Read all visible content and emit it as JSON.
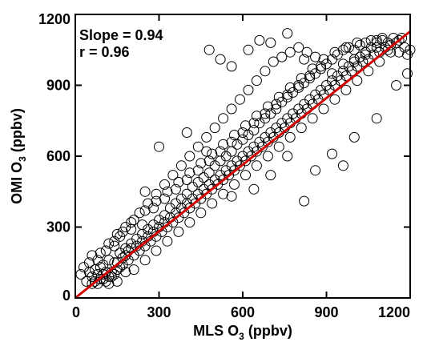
{
  "chart_data": {
    "type": "scatter",
    "title": "",
    "xlabel": "MLS O",
    "xlabel_sub": "3",
    "xlabel_unit": " (ppbv)",
    "ylabel": "OMI O",
    "ylabel_sub": "3",
    "ylabel_unit": " (ppbv)",
    "xlim": [
      0,
      1200
    ],
    "ylim": [
      0,
      1200
    ],
    "xticks": [
      0,
      300,
      600,
      900,
      1200
    ],
    "yticks": [
      0,
      300,
      600,
      900,
      1200
    ],
    "xtick_labels": [
      "0",
      "300",
      "600",
      "900",
      "1200"
    ],
    "ytick_labels": [
      "0",
      "300",
      "600",
      "900",
      "1200"
    ],
    "grid": false,
    "marker": "open-circle",
    "marker_color": "#000000",
    "fit_line": {
      "slope": 0.94,
      "intercept": 0,
      "color": "#d40000"
    },
    "annotations": [
      "Slope = 0.94",
      "r = 0.96"
    ],
    "points": [
      [
        50,
        110
      ],
      [
        60,
        90
      ],
      [
        70,
        120
      ],
      [
        80,
        100
      ],
      [
        90,
        130
      ],
      [
        100,
        80
      ],
      [
        100,
        140
      ],
      [
        110,
        110
      ],
      [
        120,
        160
      ],
      [
        130,
        90
      ],
      [
        140,
        150
      ],
      [
        150,
        120
      ],
      [
        160,
        190
      ],
      [
        170,
        140
      ],
      [
        180,
        210
      ],
      [
        190,
        160
      ],
      [
        200,
        230
      ],
      [
        210,
        180
      ],
      [
        220,
        250
      ],
      [
        230,
        200
      ],
      [
        240,
        270
      ],
      [
        250,
        220
      ],
      [
        260,
        290
      ],
      [
        270,
        240
      ],
      [
        280,
        310
      ],
      [
        290,
        260
      ],
      [
        300,
        330
      ],
      [
        310,
        280
      ],
      [
        320,
        350
      ],
      [
        330,
        300
      ],
      [
        340,
        380
      ],
      [
        350,
        320
      ],
      [
        360,
        400
      ],
      [
        370,
        340
      ],
      [
        380,
        420
      ],
      [
        390,
        360
      ],
      [
        400,
        440
      ],
      [
        410,
        380
      ],
      [
        420,
        470
      ],
      [
        430,
        400
      ],
      [
        440,
        490
      ],
      [
        450,
        420
      ],
      [
        460,
        510
      ],
      [
        470,
        440
      ],
      [
        480,
        530
      ],
      [
        490,
        460
      ],
      [
        500,
        560
      ],
      [
        510,
        480
      ],
      [
        520,
        580
      ],
      [
        530,
        500
      ],
      [
        540,
        600
      ],
      [
        550,
        520
      ],
      [
        560,
        620
      ],
      [
        570,
        540
      ],
      [
        580,
        650
      ],
      [
        590,
        560
      ],
      [
        600,
        670
      ],
      [
        610,
        580
      ],
      [
        620,
        690
      ],
      [
        630,
        600
      ],
      [
        640,
        710
      ],
      [
        650,
        620
      ],
      [
        660,
        740
      ],
      [
        670,
        640
      ],
      [
        680,
        760
      ],
      [
        690,
        660
      ],
      [
        700,
        780
      ],
      [
        710,
        680
      ],
      [
        720,
        800
      ],
      [
        730,
        700
      ],
      [
        740,
        830
      ],
      [
        750,
        720
      ],
      [
        760,
        850
      ],
      [
        770,
        740
      ],
      [
        780,
        870
      ],
      [
        790,
        760
      ],
      [
        800,
        890
      ],
      [
        810,
        780
      ],
      [
        820,
        910
      ],
      [
        830,
        800
      ],
      [
        840,
        930
      ],
      [
        850,
        820
      ],
      [
        860,
        950
      ],
      [
        870,
        840
      ],
      [
        880,
        970
      ],
      [
        890,
        860
      ],
      [
        900,
        990
      ],
      [
        910,
        880
      ],
      [
        920,
        1010
      ],
      [
        930,
        900
      ],
      [
        940,
        1030
      ],
      [
        950,
        920
      ],
      [
        960,
        1050
      ],
      [
        970,
        940
      ],
      [
        980,
        1060
      ],
      [
        990,
        960
      ],
      [
        1000,
        1050
      ],
      [
        1010,
        980
      ],
      [
        1020,
        1070
      ],
      [
        1030,
        1000
      ],
      [
        1040,
        1080
      ],
      [
        1050,
        1010
      ],
      [
        1060,
        1090
      ],
      [
        1070,
        1030
      ],
      [
        1080,
        1090
      ],
      [
        1090,
        1040
      ],
      [
        1100,
        1100
      ],
      [
        1110,
        1060
      ],
      [
        1120,
        1080
      ],
      [
        1130,
        1070
      ],
      [
        1140,
        1100
      ],
      [
        1150,
        1080
      ],
      [
        1160,
        1040
      ],
      [
        1170,
        1100
      ],
      [
        1180,
        1060
      ],
      [
        1190,
        1030
      ],
      [
        1200,
        1050
      ],
      [
        120,
        60
      ],
      [
        150,
        70
      ],
      [
        180,
        110
      ],
      [
        210,
        120
      ],
      [
        250,
        160
      ],
      [
        290,
        200
      ],
      [
        330,
        240
      ],
      [
        370,
        280
      ],
      [
        410,
        320
      ],
      [
        450,
        360
      ],
      [
        490,
        400
      ],
      [
        530,
        440
      ],
      [
        570,
        480
      ],
      [
        610,
        520
      ],
      [
        650,
        560
      ],
      [
        690,
        600
      ],
      [
        730,
        640
      ],
      [
        770,
        680
      ],
      [
        810,
        720
      ],
      [
        850,
        760
      ],
      [
        890,
        800
      ],
      [
        930,
        840
      ],
      [
        970,
        880
      ],
      [
        1010,
        920
      ],
      [
        1050,
        960
      ],
      [
        1090,
        1000
      ],
      [
        1130,
        1040
      ],
      [
        80,
        160
      ],
      [
        110,
        200
      ],
      [
        140,
        240
      ],
      [
        170,
        280
      ],
      [
        200,
        320
      ],
      [
        230,
        360
      ],
      [
        260,
        400
      ],
      [
        290,
        440
      ],
      [
        320,
        480
      ],
      [
        350,
        520
      ],
      [
        380,
        560
      ],
      [
        410,
        600
      ],
      [
        440,
        640
      ],
      [
        470,
        680
      ],
      [
        500,
        720
      ],
      [
        530,
        760
      ],
      [
        560,
        800
      ],
      [
        590,
        840
      ],
      [
        620,
        880
      ],
      [
        650,
        920
      ],
      [
        680,
        960
      ],
      [
        710,
        1000
      ],
      [
        740,
        1020
      ],
      [
        770,
        1040
      ],
      [
        800,
        1060
      ],
      [
        830,
        1040
      ],
      [
        860,
        1020
      ],
      [
        620,
        1050
      ],
      [
        660,
        1090
      ],
      [
        700,
        1080
      ],
      [
        520,
        1010
      ],
      [
        480,
        1050
      ],
      [
        560,
        980
      ],
      [
        760,
        1120
      ],
      [
        820,
        1010
      ],
      [
        920,
        610
      ],
      [
        860,
        540
      ],
      [
        820,
        410
      ],
      [
        1000,
        680
      ],
      [
        1080,
        760
      ],
      [
        1150,
        900
      ],
      [
        1190,
        950
      ],
      [
        960,
        560
      ],
      [
        300,
        640
      ],
      [
        250,
        450
      ],
      [
        400,
        700
      ],
      [
        470,
        620
      ],
      [
        560,
        430
      ],
      [
        640,
        460
      ],
      [
        700,
        520
      ],
      [
        760,
        600
      ],
      [
        140,
        220
      ],
      [
        160,
        260
      ],
      [
        200,
        290
      ],
      [
        240,
        310
      ],
      [
        280,
        380
      ],
      [
        320,
        420
      ],
      [
        360,
        460
      ],
      [
        400,
        500
      ],
      [
        440,
        540
      ],
      [
        480,
        580
      ],
      [
        520,
        620
      ],
      [
        560,
        660
      ],
      [
        600,
        700
      ],
      [
        640,
        740
      ],
      [
        680,
        780
      ],
      [
        720,
        820
      ],
      [
        760,
        860
      ],
      [
        800,
        900
      ],
      [
        840,
        940
      ],
      [
        880,
        980
      ],
      [
        920,
        950
      ],
      [
        960,
        990
      ],
      [
        1000,
        1010
      ],
      [
        1040,
        1030
      ],
      [
        1080,
        1060
      ],
      [
        1120,
        1050
      ],
      [
        1160,
        1090
      ],
      [
        60,
        60
      ],
      [
        70,
        70
      ],
      [
        80,
        60
      ],
      [
        90,
        80
      ],
      [
        100,
        100
      ],
      [
        110,
        70
      ],
      [
        120,
        90
      ],
      [
        130,
        110
      ],
      [
        140,
        100
      ],
      [
        150,
        150
      ],
      [
        160,
        130
      ],
      [
        170,
        170
      ],
      [
        180,
        180
      ],
      [
        190,
        200
      ],
      [
        200,
        210
      ],
      [
        220,
        220
      ],
      [
        240,
        240
      ],
      [
        260,
        260
      ],
      [
        280,
        280
      ],
      [
        300,
        300
      ],
      [
        320,
        320
      ],
      [
        340,
        340
      ],
      [
        360,
        360
      ],
      [
        380,
        380
      ],
      [
        400,
        400
      ],
      [
        420,
        420
      ],
      [
        440,
        440
      ],
      [
        460,
        460
      ],
      [
        480,
        480
      ],
      [
        500,
        500
      ],
      [
        520,
        520
      ],
      [
        540,
        540
      ],
      [
        560,
        560
      ],
      [
        580,
        580
      ],
      [
        600,
        600
      ],
      [
        620,
        620
      ],
      [
        640,
        640
      ],
      [
        660,
        660
      ],
      [
        680,
        680
      ],
      [
        700,
        700
      ],
      [
        720,
        720
      ],
      [
        740,
        740
      ],
      [
        760,
        760
      ],
      [
        780,
        780
      ],
      [
        800,
        800
      ],
      [
        820,
        820
      ],
      [
        840,
        840
      ],
      [
        860,
        860
      ],
      [
        880,
        880
      ],
      [
        900,
        900
      ],
      [
        920,
        920
      ],
      [
        940,
        940
      ],
      [
        960,
        960
      ],
      [
        980,
        980
      ],
      [
        1000,
        1000
      ],
      [
        1020,
        1020
      ],
      [
        1040,
        1040
      ],
      [
        1060,
        1060
      ],
      [
        1080,
        1080
      ],
      [
        1100,
        1090
      ],
      [
        30,
        130
      ],
      [
        40,
        70
      ],
      [
        50,
        150
      ],
      [
        20,
        100
      ],
      [
        60,
        180
      ],
      [
        90,
        190
      ],
      [
        120,
        230
      ],
      [
        150,
        270
      ],
      [
        180,
        300
      ],
      [
        210,
        330
      ],
      [
        250,
        370
      ],
      [
        290,
        410
      ],
      [
        330,
        450
      ],
      [
        370,
        490
      ],
      [
        410,
        530
      ],
      [
        450,
        570
      ],
      [
        490,
        610
      ],
      [
        530,
        650
      ],
      [
        570,
        690
      ],
      [
        610,
        730
      ],
      [
        650,
        770
      ],
      [
        690,
        810
      ],
      [
        730,
        850
      ],
      [
        770,
        890
      ],
      [
        810,
        930
      ],
      [
        850,
        970
      ],
      [
        890,
        1010
      ],
      [
        930,
        1040
      ],
      [
        970,
        1060
      ],
      [
        1010,
        1080
      ]
    ]
  }
}
